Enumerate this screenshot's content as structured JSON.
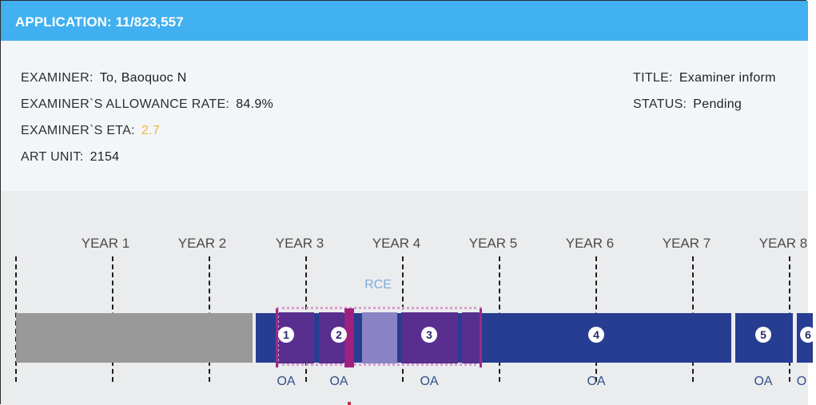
{
  "header": {
    "title": "APPLICATION: 11/823,557"
  },
  "info": {
    "examiner": {
      "label": "EXAMINER:",
      "value": "To, Baoquoc N"
    },
    "allowance": {
      "label": "EXAMINER`S ALLOWANCE RATE:",
      "value": "84.9%"
    },
    "eta": {
      "label": "EXAMINER`S ETA:",
      "value": "2.7"
    },
    "art_unit": {
      "label": "ART UNIT:",
      "value": "2154"
    },
    "title": {
      "label": "TITLE:",
      "value": "Examiner inform"
    },
    "status": {
      "label": "STATUS:",
      "value": "Pending"
    }
  },
  "timeline": {
    "years": [
      "YEAR 1",
      "YEAR 2",
      "YEAR 3",
      "YEAR 4",
      "YEAR 5",
      "YEAR 6",
      "YEAR 7",
      "YEAR 8"
    ],
    "rce_label": "RCE",
    "events": [
      {
        "number": "1",
        "label": "OA"
      },
      {
        "number": "2",
        "label": "OA"
      },
      {
        "number": "3",
        "label": "OA"
      },
      {
        "number": "4",
        "label": "OA"
      },
      {
        "number": "5",
        "label": "OA"
      },
      {
        "number": "6",
        "label": "O"
      }
    ]
  },
  "colors": {
    "header": "#41b0f0",
    "eta": "#f4b13e",
    "bar_blue": "#273d91",
    "bar_purple": "#582f8e",
    "bar_gray": "#999999",
    "accent_magenta": "#a02080"
  }
}
